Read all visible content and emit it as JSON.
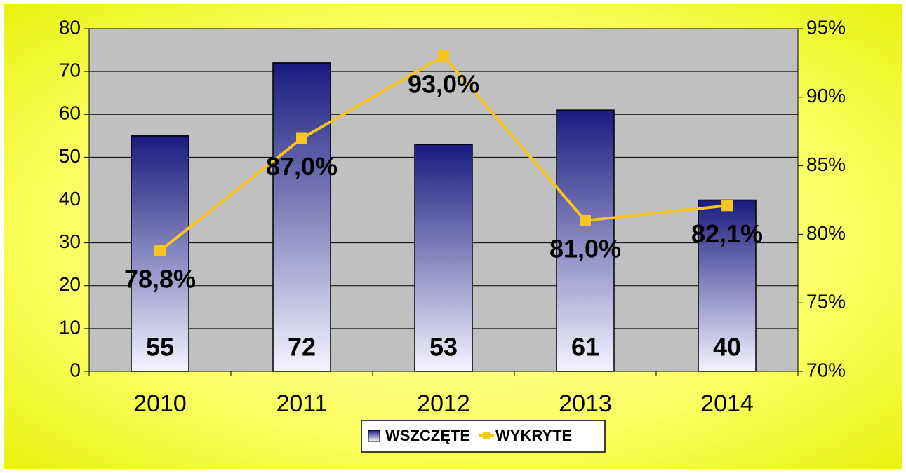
{
  "chart_data": {
    "type": "bar",
    "categories": [
      "2010",
      "2011",
      "2012",
      "2013",
      "2014"
    ],
    "series": [
      {
        "name": "WSZCZĘTE",
        "color": "#1a1a80",
        "values": [
          55,
          72,
          53,
          61,
          40
        ]
      },
      {
        "name": "WYKRYTE",
        "color": "#f7c520",
        "type": "line",
        "axis": "y2",
        "values": [
          78.8,
          87.0,
          93.0,
          81.0,
          82.1
        ],
        "value_labels": [
          "78,8%",
          "87,0%",
          "93,0%",
          "81,0%",
          "82,1%"
        ]
      }
    ],
    "ylim": [
      0,
      80
    ],
    "yticks": [
      0,
      10,
      20,
      30,
      40,
      50,
      60,
      70,
      80
    ],
    "y2lim": [
      70,
      95
    ],
    "y2ticks": [
      {
        "value": 70,
        "label": "70%"
      },
      {
        "value": 75,
        "label": "75%"
      },
      {
        "value": 80,
        "label": "80%"
      },
      {
        "value": 85,
        "label": "85%"
      },
      {
        "value": 90,
        "label": "90%"
      },
      {
        "value": 95,
        "label": "95%"
      }
    ],
    "grid": true,
    "legend": "bottom"
  }
}
